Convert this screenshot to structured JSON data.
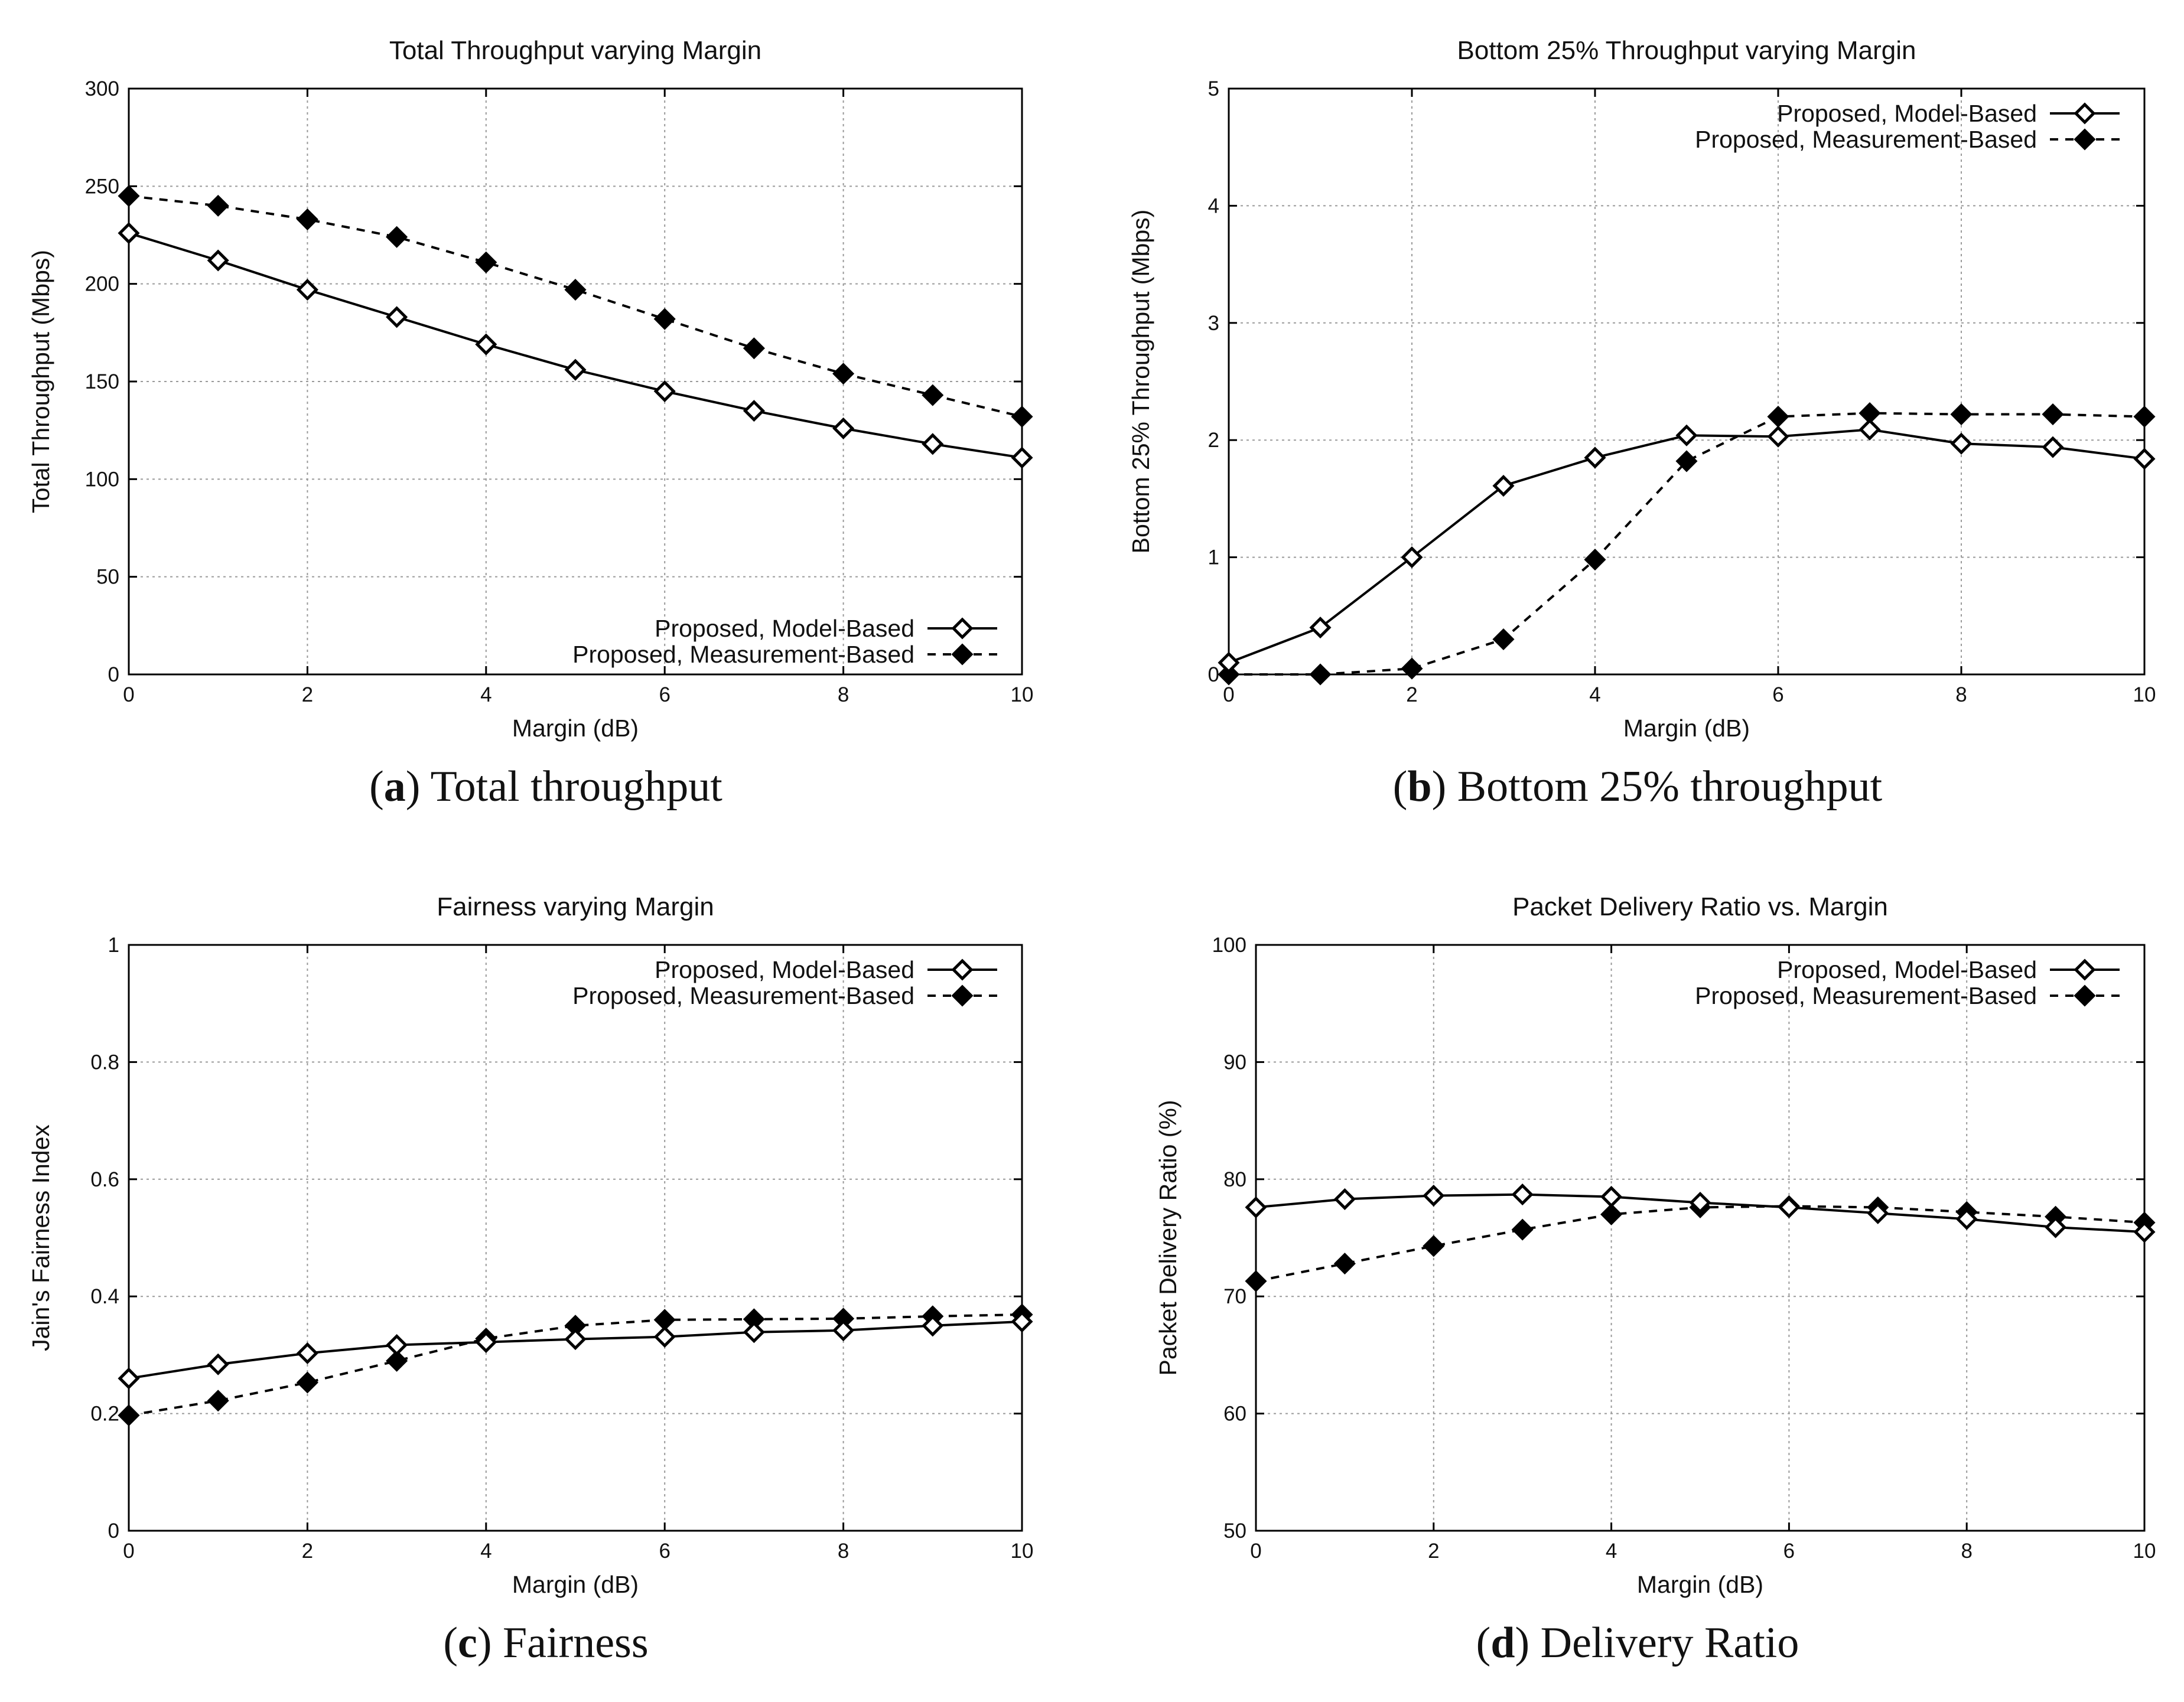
{
  "captions": [
    {
      "letter": "a",
      "text": "Total throughput"
    },
    {
      "letter": "b",
      "text": "Bottom 25% throughput"
    },
    {
      "letter": "c",
      "text": "Fairness"
    },
    {
      "letter": "d",
      "text": "Delivery Ratio"
    }
  ],
  "legend": {
    "model": "Proposed, Model-Based",
    "measurement": "Proposed, Measurement-Based"
  },
  "chart_data": [
    {
      "type": "line",
      "title": "Total Throughput varying Margin",
      "xlabel": "Margin (dB)",
      "ylabel": "Total Throughput (Mbps)",
      "xlim": [
        0,
        10
      ],
      "ylim": [
        0,
        300
      ],
      "xticks": [
        0,
        2,
        4,
        6,
        8,
        10
      ],
      "yticks": [
        0,
        50,
        100,
        150,
        200,
        250,
        300
      ],
      "grid": true,
      "legend_position": "bottom-right",
      "x": [
        0,
        1,
        2,
        3,
        4,
        5,
        6,
        7,
        8,
        9,
        10
      ],
      "series": [
        {
          "name": "Proposed, Model-Based",
          "style": "solid",
          "marker": "open-diamond",
          "values": [
            226,
            212,
            197,
            183,
            169,
            156,
            145,
            135,
            126,
            118,
            111
          ]
        },
        {
          "name": "Proposed, Measurement-Based",
          "style": "dashed",
          "marker": "filled-diamond",
          "values": [
            245,
            240,
            233,
            224,
            211,
            197,
            182,
            167,
            154,
            143,
            132
          ]
        }
      ]
    },
    {
      "type": "line",
      "title": "Bottom 25% Throughput varying Margin",
      "xlabel": "Margin (dB)",
      "ylabel": "Bottom 25% Throughput (Mbps)",
      "xlim": [
        0,
        10
      ],
      "ylim": [
        0,
        5
      ],
      "xticks": [
        0,
        2,
        4,
        6,
        8,
        10
      ],
      "yticks": [
        0,
        1,
        2,
        3,
        4,
        5
      ],
      "grid": true,
      "legend_position": "top-right",
      "x": [
        0,
        1,
        2,
        3,
        4,
        5,
        6,
        7,
        8,
        9,
        10
      ],
      "series": [
        {
          "name": "Proposed, Model-Based",
          "style": "solid",
          "marker": "open-diamond",
          "values": [
            0.1,
            0.4,
            1.0,
            1.61,
            1.85,
            2.04,
            2.03,
            2.09,
            1.97,
            1.94,
            1.84
          ]
        },
        {
          "name": "Proposed, Measurement-Based",
          "style": "dashed",
          "marker": "filled-diamond",
          "values": [
            0.0,
            0.0,
            0.05,
            0.3,
            0.98,
            1.82,
            2.2,
            2.23,
            2.22,
            2.22,
            2.2
          ]
        }
      ]
    },
    {
      "type": "line",
      "title": "Fairness varying Margin",
      "xlabel": "Margin (dB)",
      "ylabel": "Jain's Fairness Index",
      "xlim": [
        0,
        10
      ],
      "ylim": [
        0,
        1
      ],
      "xticks": [
        0,
        2,
        4,
        6,
        8,
        10
      ],
      "yticks": [
        0,
        0.2,
        0.4,
        0.6,
        0.8,
        1
      ],
      "grid": true,
      "legend_position": "top-right",
      "x": [
        0,
        1,
        2,
        3,
        4,
        5,
        6,
        7,
        8,
        9,
        10
      ],
      "series": [
        {
          "name": "Proposed, Model-Based",
          "style": "solid",
          "marker": "open-diamond",
          "values": [
            0.26,
            0.284,
            0.303,
            0.317,
            0.322,
            0.327,
            0.331,
            0.339,
            0.342,
            0.35,
            0.357
          ]
        },
        {
          "name": "Proposed, Measurement-Based",
          "style": "dashed",
          "marker": "filled-diamond",
          "values": [
            0.197,
            0.222,
            0.253,
            0.29,
            0.328,
            0.35,
            0.36,
            0.361,
            0.362,
            0.366,
            0.369
          ]
        }
      ]
    },
    {
      "type": "line",
      "title": "Packet Delivery Ratio vs. Margin",
      "xlabel": "Margin (dB)",
      "ylabel": "Packet Delivery Ratio (%)",
      "xlim": [
        0,
        10
      ],
      "ylim": [
        50,
        100
      ],
      "xticks": [
        0,
        2,
        4,
        6,
        8,
        10
      ],
      "yticks": [
        50,
        60,
        70,
        80,
        90,
        100
      ],
      "grid": true,
      "legend_position": "top-right",
      "x": [
        0,
        1,
        2,
        3,
        4,
        5,
        6,
        7,
        8,
        9,
        10
      ],
      "series": [
        {
          "name": "Proposed, Model-Based",
          "style": "solid",
          "marker": "open-diamond",
          "values": [
            77.6,
            78.3,
            78.6,
            78.7,
            78.5,
            78.0,
            77.6,
            77.1,
            76.6,
            75.9,
            75.5
          ]
        },
        {
          "name": "Proposed, Measurement-Based",
          "style": "dashed",
          "marker": "filled-diamond",
          "values": [
            71.3,
            72.8,
            74.3,
            75.7,
            77.0,
            77.6,
            77.7,
            77.6,
            77.2,
            76.8,
            76.3
          ]
        }
      ]
    }
  ]
}
